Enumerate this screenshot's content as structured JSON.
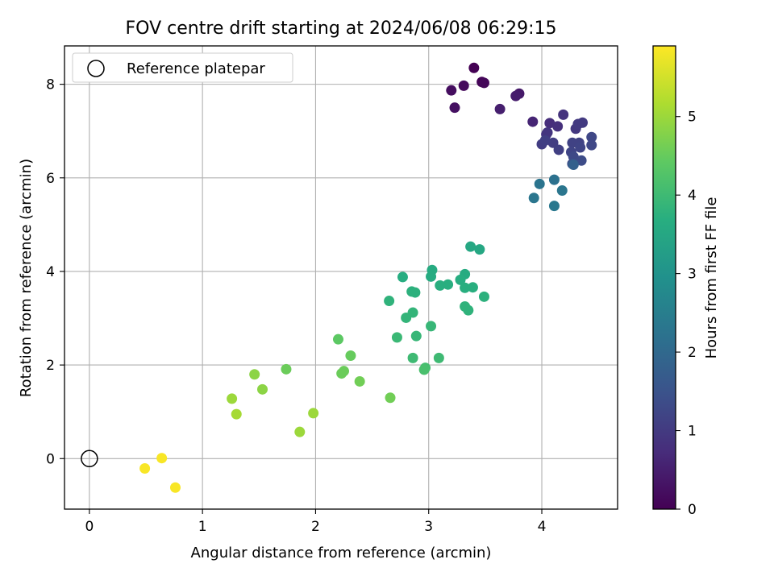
{
  "chart_data": {
    "type": "scatter",
    "title": "FOV centre drift starting at 2024/06/08 06:29:15",
    "xlabel": "Angular distance from reference (arcmin)",
    "ylabel": "Rotation from reference (arcmin)",
    "xlim": [
      -0.22,
      4.67
    ],
    "ylim": [
      -1.08,
      8.82
    ],
    "xticks": [
      "0",
      "1",
      "2",
      "3",
      "4"
    ],
    "yticks": [
      "0",
      "2",
      "4",
      "6",
      "8"
    ],
    "grid": true,
    "legend": {
      "placement": "upper-left",
      "entries": [
        "Reference platepar"
      ]
    },
    "reference_point": {
      "x": 0,
      "y": 0
    },
    "colorbar": {
      "label": "Hours from first FF file",
      "colormap": "viridis",
      "range": [
        0,
        5.9
      ],
      "ticks": [
        "0",
        "1",
        "2",
        "3",
        "4",
        "5"
      ]
    },
    "points": [
      [
        3.4,
        8.35,
        0.0
      ],
      [
        3.47,
        8.05,
        0.05
      ],
      [
        3.49,
        8.03,
        0.1
      ],
      [
        3.31,
        7.97,
        0.15
      ],
      [
        3.2,
        7.87,
        0.2
      ],
      [
        3.23,
        7.5,
        0.25
      ],
      [
        3.8,
        7.8,
        0.4
      ],
      [
        3.77,
        7.75,
        0.45
      ],
      [
        3.63,
        7.47,
        0.5
      ],
      [
        3.92,
        7.2,
        0.6
      ],
      [
        4.07,
        7.17,
        0.75
      ],
      [
        4.14,
        7.1,
        0.8
      ],
      [
        4.19,
        7.35,
        0.85
      ],
      [
        4.04,
        6.93,
        0.9
      ],
      [
        4.05,
        6.97,
        0.9
      ],
      [
        4.3,
        7.05,
        0.95
      ],
      [
        4.32,
        7.15,
        1.0
      ],
      [
        4.36,
        7.18,
        1.0
      ],
      [
        4.0,
        6.72,
        1.05
      ],
      [
        4.1,
        6.75,
        1.05
      ],
      [
        4.03,
        6.8,
        1.1
      ],
      [
        4.15,
        6.6,
        1.1
      ],
      [
        4.27,
        6.75,
        1.15
      ],
      [
        4.33,
        6.75,
        1.15
      ],
      [
        4.34,
        6.65,
        1.2
      ],
      [
        4.26,
        6.55,
        1.2
      ],
      [
        4.44,
        6.87,
        1.25
      ],
      [
        4.44,
        6.7,
        1.25
      ],
      [
        4.28,
        6.45,
        1.3
      ],
      [
        4.35,
        6.37,
        1.35
      ],
      [
        4.27,
        6.3,
        1.4
      ],
      [
        4.28,
        6.28,
        1.8
      ],
      [
        4.11,
        5.96,
        2.2
      ],
      [
        3.98,
        5.87,
        2.25
      ],
      [
        4.18,
        5.73,
        2.3
      ],
      [
        3.93,
        5.57,
        2.3
      ],
      [
        4.11,
        5.4,
        2.35
      ],
      [
        3.37,
        4.53,
        3.5
      ],
      [
        3.45,
        4.47,
        3.5
      ],
      [
        3.03,
        4.03,
        3.6
      ],
      [
        3.32,
        3.94,
        3.6
      ],
      [
        3.02,
        3.89,
        3.6
      ],
      [
        2.77,
        3.88,
        3.65
      ],
      [
        3.28,
        3.82,
        3.65
      ],
      [
        3.17,
        3.72,
        3.7
      ],
      [
        3.1,
        3.7,
        3.7
      ],
      [
        3.39,
        3.66,
        3.7
      ],
      [
        3.32,
        3.65,
        3.7
      ],
      [
        2.85,
        3.57,
        3.75
      ],
      [
        2.88,
        3.55,
        3.75
      ],
      [
        3.49,
        3.46,
        3.75
      ],
      [
        2.65,
        3.37,
        3.8
      ],
      [
        3.32,
        3.25,
        3.8
      ],
      [
        3.35,
        3.17,
        3.8
      ],
      [
        2.86,
        3.12,
        3.85
      ],
      [
        2.8,
        3.01,
        3.85
      ],
      [
        3.02,
        2.83,
        3.9
      ],
      [
        2.89,
        2.62,
        3.9
      ],
      [
        2.72,
        2.59,
        3.95
      ],
      [
        2.86,
        2.15,
        4.0
      ],
      [
        3.09,
        2.15,
        4.0
      ],
      [
        2.97,
        1.94,
        4.1
      ],
      [
        2.96,
        1.9,
        4.15
      ],
      [
        2.2,
        2.55,
        4.4
      ],
      [
        2.31,
        2.2,
        4.5
      ],
      [
        1.74,
        1.91,
        4.55
      ],
      [
        2.25,
        1.87,
        4.55
      ],
      [
        2.23,
        1.82,
        4.55
      ],
      [
        2.39,
        1.65,
        4.6
      ],
      [
        2.66,
        1.3,
        4.6
      ],
      [
        1.46,
        1.8,
        4.85
      ],
      [
        1.53,
        1.48,
        4.85
      ],
      [
        1.26,
        1.28,
        5.0
      ],
      [
        1.3,
        0.95,
        5.1
      ],
      [
        1.98,
        0.97,
        5.0
      ],
      [
        1.86,
        0.57,
        5.0
      ],
      [
        0.64,
        0.01,
        5.85
      ],
      [
        0.49,
        -0.21,
        5.85
      ],
      [
        0.76,
        -0.62,
        5.85
      ]
    ]
  }
}
